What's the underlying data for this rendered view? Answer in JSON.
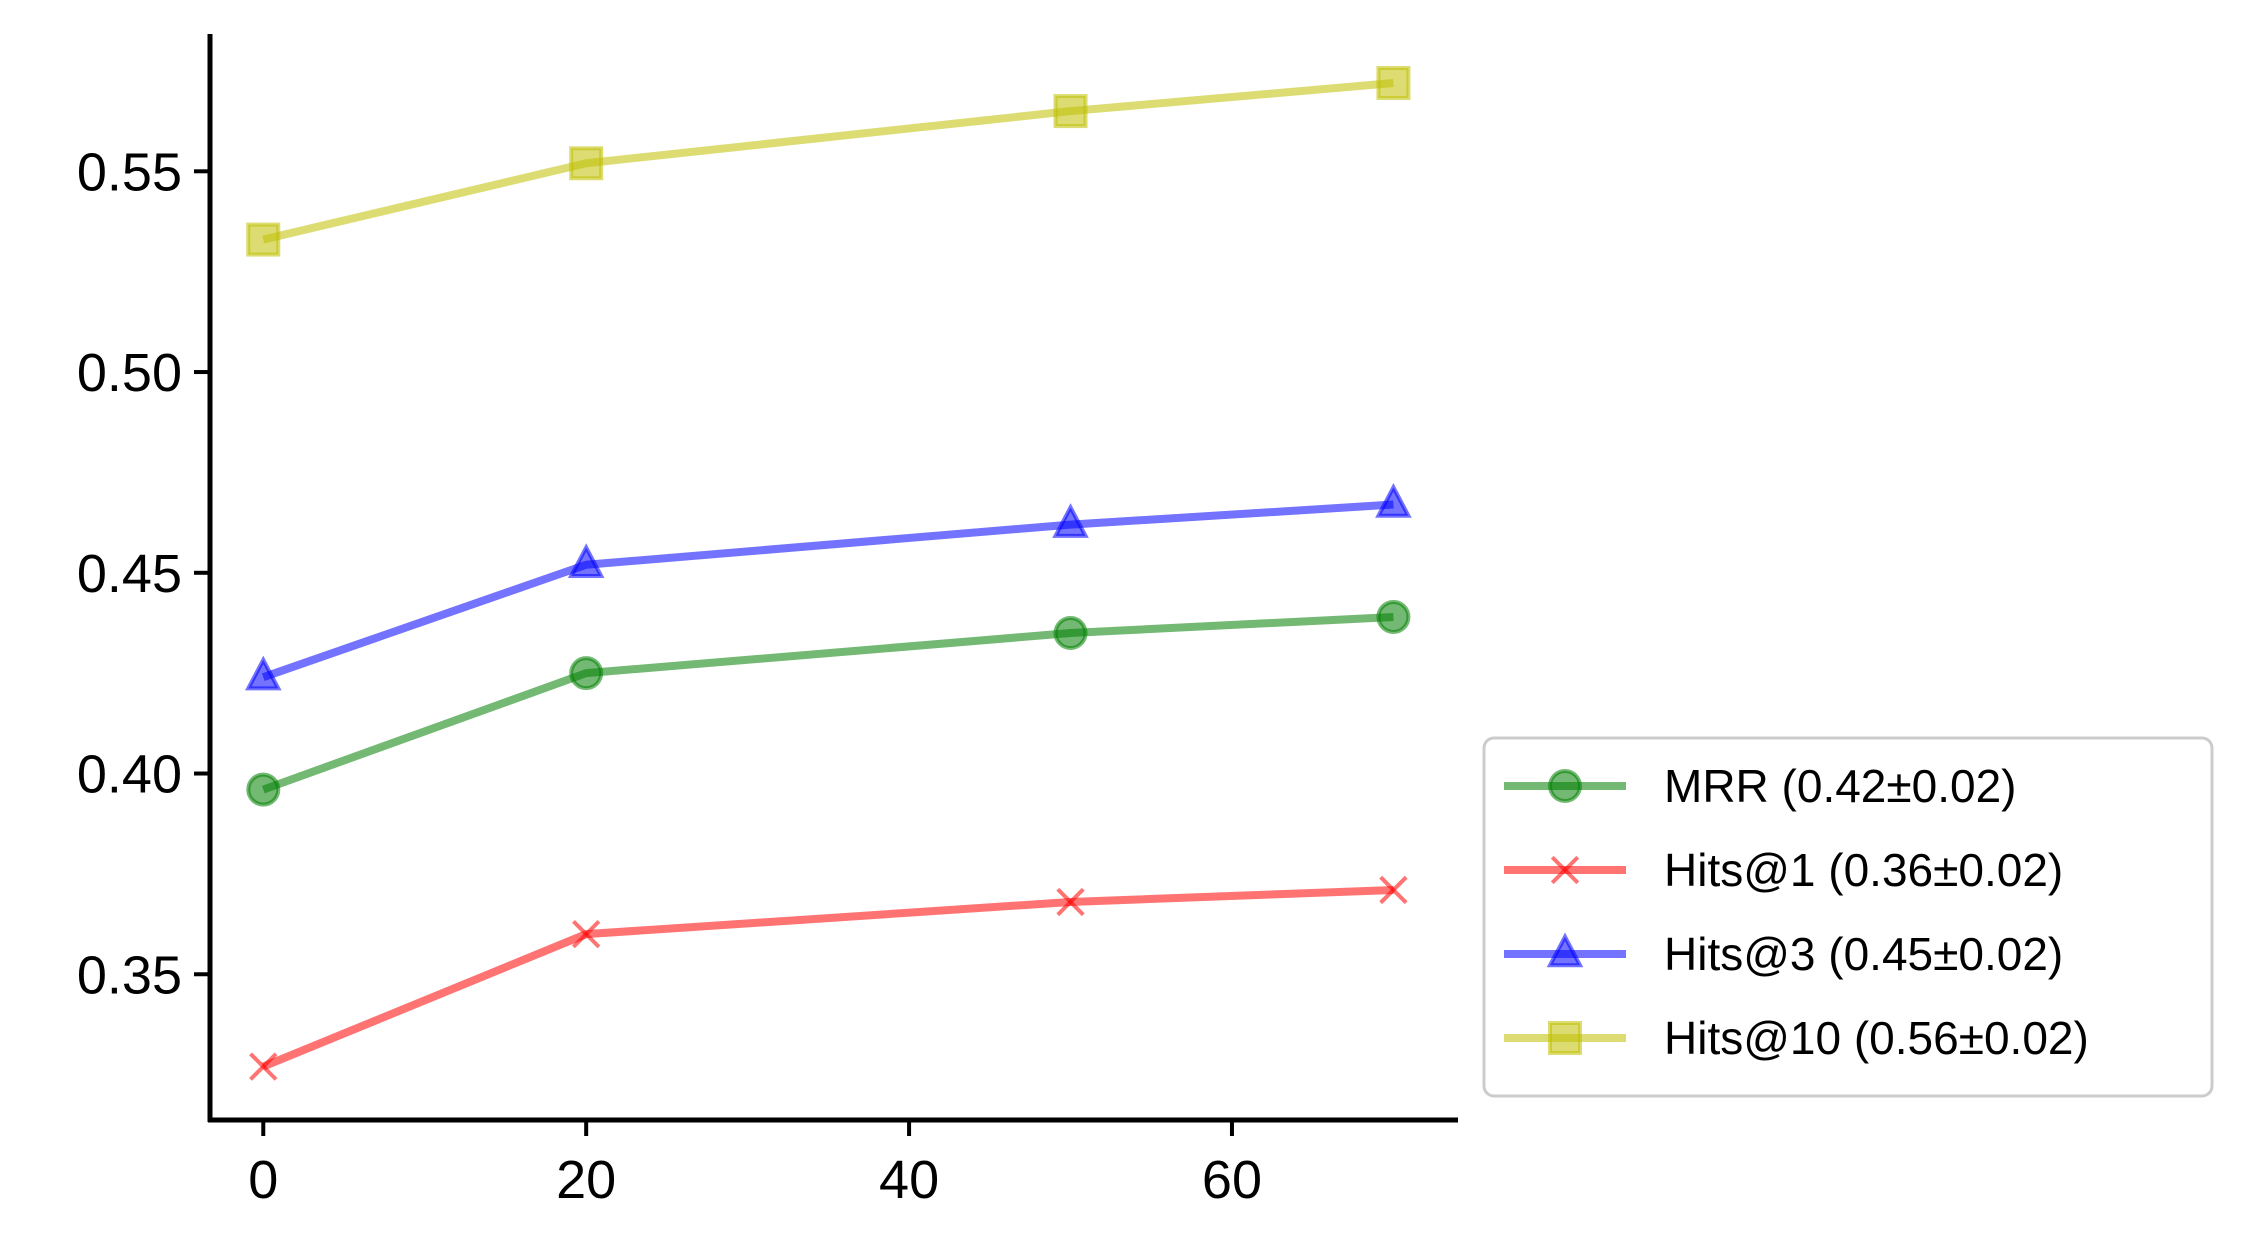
{
  "chart_data": {
    "type": "line",
    "title": "",
    "xlabel": "",
    "ylabel": "",
    "x": [
      0,
      20,
      50,
      70
    ],
    "xlim": [
      -3.3,
      74
    ],
    "ylim": [
      0.3137,
      0.5842
    ],
    "xticks": [
      0,
      20,
      40,
      60
    ],
    "yticks": [
      0.35,
      0.4,
      0.45,
      0.5,
      0.55
    ],
    "xtick_labels": [
      "0",
      "20",
      "40",
      "60"
    ],
    "ytick_labels": [
      "0.35",
      "0.40",
      "0.45",
      "0.50",
      "0.55"
    ],
    "grid": false,
    "legend_position": "lower-right outside plot",
    "series": [
      {
        "name": "MRR (0.42±0.02)",
        "color": "#008000",
        "marker": "circle",
        "values": [
          0.396,
          0.425,
          0.435,
          0.439
        ]
      },
      {
        "name": "Hits@1 (0.36±0.02)",
        "color": "#ff0000",
        "marker": "x",
        "values": [
          0.327,
          0.36,
          0.368,
          0.371
        ]
      },
      {
        "name": "Hits@3 (0.45±0.02)",
        "color": "#0000ff",
        "marker": "triangle",
        "values": [
          0.424,
          0.452,
          0.462,
          0.467
        ]
      },
      {
        "name": "Hits@10 (0.56±0.02)",
        "color": "#bfbf00",
        "marker": "square",
        "values": [
          0.533,
          0.552,
          0.565,
          0.572
        ]
      }
    ]
  }
}
